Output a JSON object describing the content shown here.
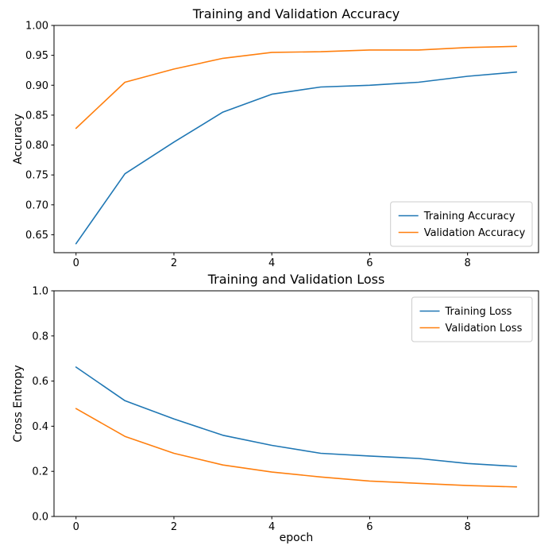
{
  "figure": {
    "background_color": "#ffffff",
    "text_color": "#000000",
    "spine_color": "#000000",
    "legend_border_color": "#cccccc"
  },
  "chart_data": [
    {
      "type": "line",
      "name": "accuracy",
      "title": "Training and Validation Accuracy",
      "xlabel": "",
      "ylabel": "Accuracy",
      "x": [
        0,
        1,
        2,
        3,
        4,
        5,
        6,
        7,
        8,
        9
      ],
      "xlim": [
        -0.45,
        9.45
      ],
      "ylim": [
        0.62,
        1.0
      ],
      "xticks": [
        0,
        2,
        4,
        6,
        8
      ],
      "xtick_labels": [
        "0",
        "2",
        "4",
        "6",
        "8"
      ],
      "yticks": [
        0.65,
        0.7,
        0.75,
        0.8,
        0.85,
        0.9,
        0.95,
        1.0
      ],
      "ytick_labels": [
        "0.65",
        "0.70",
        "0.75",
        "0.80",
        "0.85",
        "0.90",
        "0.95",
        "1.00"
      ],
      "grid": false,
      "legend_position": "lower right",
      "series": [
        {
          "name": "Training Accuracy",
          "color": "#1f77b4",
          "values": [
            0.635,
            0.752,
            0.805,
            0.855,
            0.885,
            0.897,
            0.9,
            0.905,
            0.915,
            0.922
          ]
        },
        {
          "name": "Validation Accuracy",
          "color": "#ff7f0e",
          "values": [
            0.828,
            0.905,
            0.927,
            0.945,
            0.955,
            0.956,
            0.959,
            0.959,
            0.963,
            0.965
          ]
        }
      ]
    },
    {
      "type": "line",
      "name": "loss",
      "title": "Training and Validation Loss",
      "xlabel": "epoch",
      "ylabel": "Cross Entropy",
      "x": [
        0,
        1,
        2,
        3,
        4,
        5,
        6,
        7,
        8,
        9
      ],
      "xlim": [
        -0.45,
        9.45
      ],
      "ylim": [
        0.0,
        1.0
      ],
      "xticks": [
        0,
        2,
        4,
        6,
        8
      ],
      "xtick_labels": [
        "0",
        "2",
        "4",
        "6",
        "8"
      ],
      "yticks": [
        0.0,
        0.2,
        0.4,
        0.6,
        0.8,
        1.0
      ],
      "ytick_labels": [
        "0.0",
        "0.2",
        "0.4",
        "0.6",
        "0.8",
        "1.0"
      ],
      "grid": false,
      "legend_position": "upper right",
      "series": [
        {
          "name": "Training Loss",
          "color": "#1f77b4",
          "values": [
            0.662,
            0.513,
            0.432,
            0.36,
            0.315,
            0.28,
            0.268,
            0.257,
            0.235,
            0.222
          ]
        },
        {
          "name": "Validation Loss",
          "color": "#ff7f0e",
          "values": [
            0.478,
            0.355,
            0.28,
            0.228,
            0.197,
            0.175,
            0.157,
            0.147,
            0.137,
            0.131
          ]
        }
      ]
    }
  ]
}
